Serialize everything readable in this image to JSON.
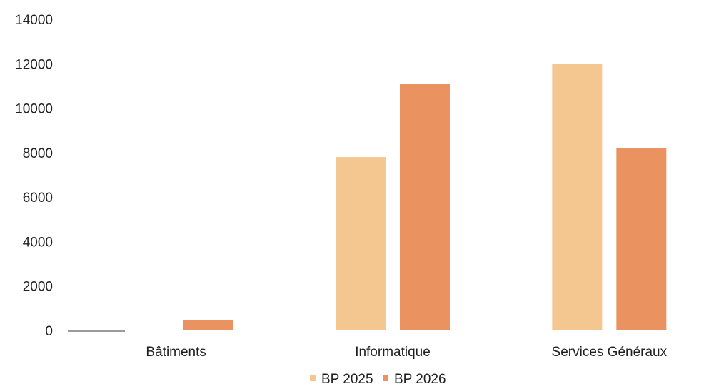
{
  "chart_data": {
    "type": "bar",
    "title": "",
    "xlabel": "",
    "ylabel": "",
    "ylim": [
      0,
      14000
    ],
    "yticks": [
      "0",
      "2000",
      "4000",
      "6000",
      "8000",
      "10000",
      "12000",
      "14000"
    ],
    "grid": false,
    "legend_position": "bottom",
    "categories": [
      "Bâtiments",
      "Informatique",
      "Services Généraux"
    ],
    "series": [
      {
        "name": "BP 2025",
        "color": "#f3c78f",
        "values": [
          0,
          7800,
          12000
        ]
      },
      {
        "name": "BP 2026",
        "color": "#eb9360",
        "values": [
          450,
          11100,
          8200
        ]
      }
    ]
  }
}
